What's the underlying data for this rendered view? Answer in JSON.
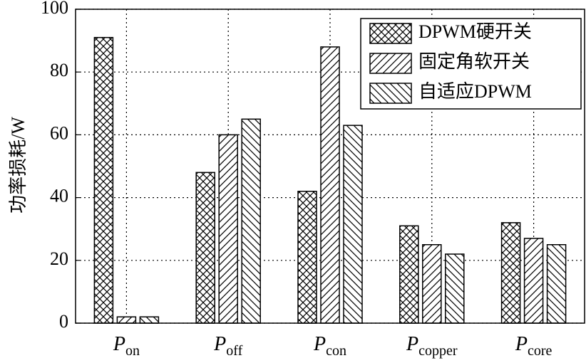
{
  "chart_data": {
    "type": "bar",
    "y_label": "功率损耗/W",
    "categories": [
      {
        "main": "P",
        "sub": "on"
      },
      {
        "main": "P",
        "sub": "off"
      },
      {
        "main": "P",
        "sub": "con"
      },
      {
        "main": "P",
        "sub": "copper"
      },
      {
        "main": "P",
        "sub": "core"
      }
    ],
    "series": [
      {
        "name": "DPWM硬开关",
        "color": "#000000",
        "pattern": "crosshatch",
        "values": [
          91,
          48,
          42,
          31,
          32
        ]
      },
      {
        "name": "固定角软开关",
        "color": "#000000",
        "pattern": "forward",
        "values": [
          2,
          60,
          88,
          25,
          27
        ]
      },
      {
        "name": "自适应DPWM",
        "color": "#000000",
        "pattern": "backward",
        "values": [
          2,
          65,
          63,
          22,
          25
        ]
      }
    ],
    "ylim": [
      0,
      100
    ],
    "yticks": [
      0,
      20,
      40,
      60,
      80,
      100
    ],
    "grid": true,
    "legend": "upper right"
  }
}
